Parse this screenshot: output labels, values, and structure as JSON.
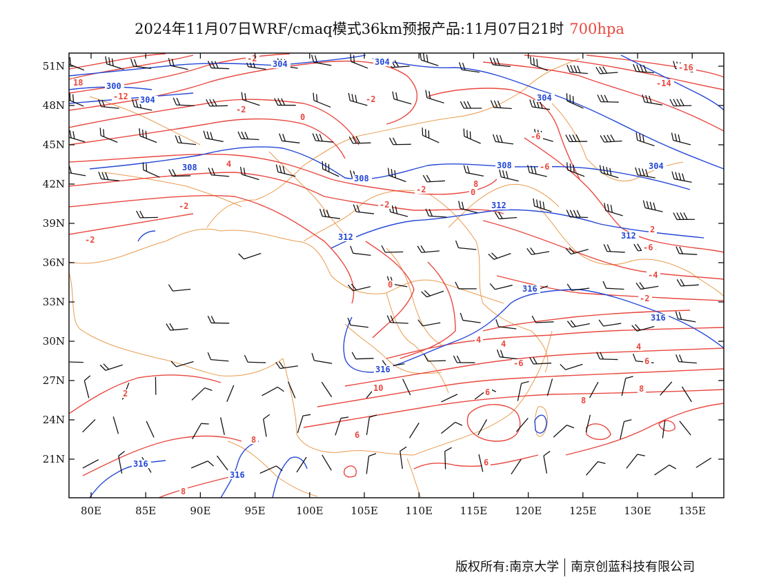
{
  "title": {
    "main": "2024年11月07日WRF/cmaq模式36km预报产品:11月07日21时",
    "level": "700hpa"
  },
  "colors": {
    "temperature": "#e8473f",
    "height": "#2347d6",
    "border": "#e89b4d",
    "barb": "#111111",
    "level_text": "#e8473f"
  },
  "axes": {
    "lon_labels": [
      "80E",
      "85E",
      "90E",
      "95E",
      "100E",
      "105E",
      "110E",
      "115E",
      "120E",
      "125E",
      "130E",
      "135E"
    ],
    "lat_labels": [
      "51N",
      "48N",
      "45N",
      "42N",
      "39N",
      "36N",
      "33N",
      "30N",
      "27N",
      "24N",
      "21N"
    ]
  },
  "contour_labels": {
    "temperature": [
      "-2",
      "18",
      "-12",
      "-2",
      "-2",
      "0",
      "-2",
      "-6",
      "-14",
      "-16",
      "-6",
      "4",
      "-2",
      "0",
      "-2",
      "8",
      "-2",
      "2",
      "-6",
      "-4",
      "-2",
      "0",
      "4",
      "-6",
      "4",
      "2",
      "10",
      "4",
      "6",
      "6",
      "8",
      "8",
      "6",
      "8",
      "6",
      "8"
    ],
    "height": [
      "304",
      "304",
      "300",
      "304",
      "304",
      "308",
      "308",
      "308",
      "304",
      "312",
      "312",
      "312",
      "316",
      "316",
      "316",
      "316",
      "316"
    ]
  },
  "footer": {
    "left": "版权所有:南京大学",
    "right": "南京创蓝科技有限公司"
  }
}
